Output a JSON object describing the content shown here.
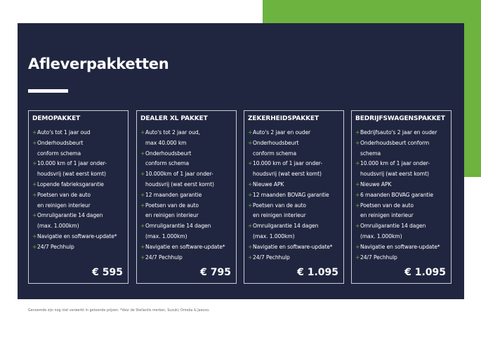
{
  "title": "Afleverpakketten",
  "colors": {
    "panel": "#212640",
    "accent": "#6db33f"
  },
  "packages": [
    {
      "name": "DEMOPAKKET",
      "price": "€ 595",
      "items": [
        [
          "Auto's tot 1 jaar oud"
        ],
        [
          "Onderhoudsbeurt",
          "conform schema"
        ],
        [
          "10.000 km of 1 jaar onder-",
          "houdsvrij (wat eerst komt)"
        ],
        [
          "Lopende fabrieksgarantie"
        ],
        [
          "Poetsen van de auto",
          "en reinigen interieur"
        ],
        [
          "Omruilgarantie 14 dagen",
          "(max. 1.000km)"
        ],
        [
          "Navigatie en software-update*"
        ],
        [
          "24/7 Pechhulp"
        ]
      ]
    },
    {
      "name": "DEALER XL PAKKET",
      "price": "€ 795",
      "items": [
        [
          "Auto's tot 2 jaar oud,",
          "max 40.000 km"
        ],
        [
          "Onderhoudsbeurt",
          "conform schema"
        ],
        [
          "10.000km of 1 jaar onder-",
          "houdsvrij (wat eerst komt)"
        ],
        [
          "12 maanden garantie"
        ],
        [
          "Poetsen van de auto",
          "en reinigen interieur"
        ],
        [
          "Omruilgarantie 14 dagen",
          "(max. 1.000km)"
        ],
        [
          "Navigatie en software-update*"
        ],
        [
          "24/7 Pechhulp"
        ]
      ]
    },
    {
      "name": "ZEKERHEIDSPAKKET",
      "price": "€ 1.095",
      "items": [
        [
          "Auto's 2 jaar en ouder"
        ],
        [
          "Onderhoudsbeurt",
          "conform schema"
        ],
        [
          "10.000 km of 1 jaar onder-",
          "houdsvrij (wat eerst komt)"
        ],
        [
          "Nieuwe APK"
        ],
        [
          "12 maanden BOVAG garantie"
        ],
        [
          "Poetsen van de auto",
          "en reinigen interieur"
        ],
        [
          "Omruilgarantie 14 dagen",
          "(max. 1.000km)"
        ],
        [
          "Navigatie en software-update*"
        ],
        [
          "24/7 Pechhulp"
        ]
      ]
    },
    {
      "name": "BEDRIJFSWAGENSPAKKET",
      "price": "€ 1.095",
      "items": [
        [
          "Bedrijfsauto's 2 jaar en ouder"
        ],
        [
          "Onderhoudsbeurt conform",
          "schema"
        ],
        [
          "10.000 km of 1 jaar onder-",
          "houdsvrij (wat eerst komt)"
        ],
        [
          "Nieuwe APK"
        ],
        [
          "6 maanden BOVAG garantie"
        ],
        [
          "Poetsen van de auto",
          "en reinigen interieur"
        ],
        [
          "Omruilgarantie 14 dagen",
          "(max. 1.000km)"
        ],
        [
          "Navigatie en software-update*"
        ],
        [
          "24/7 Pechhulp"
        ]
      ]
    }
  ],
  "bullet": "+",
  "footnote": "Genoemde zijn nog niet verwerkt in getoonde prijzen. *Voor de Stellantis merken, Suzuki, Omoda & Jaecoo."
}
